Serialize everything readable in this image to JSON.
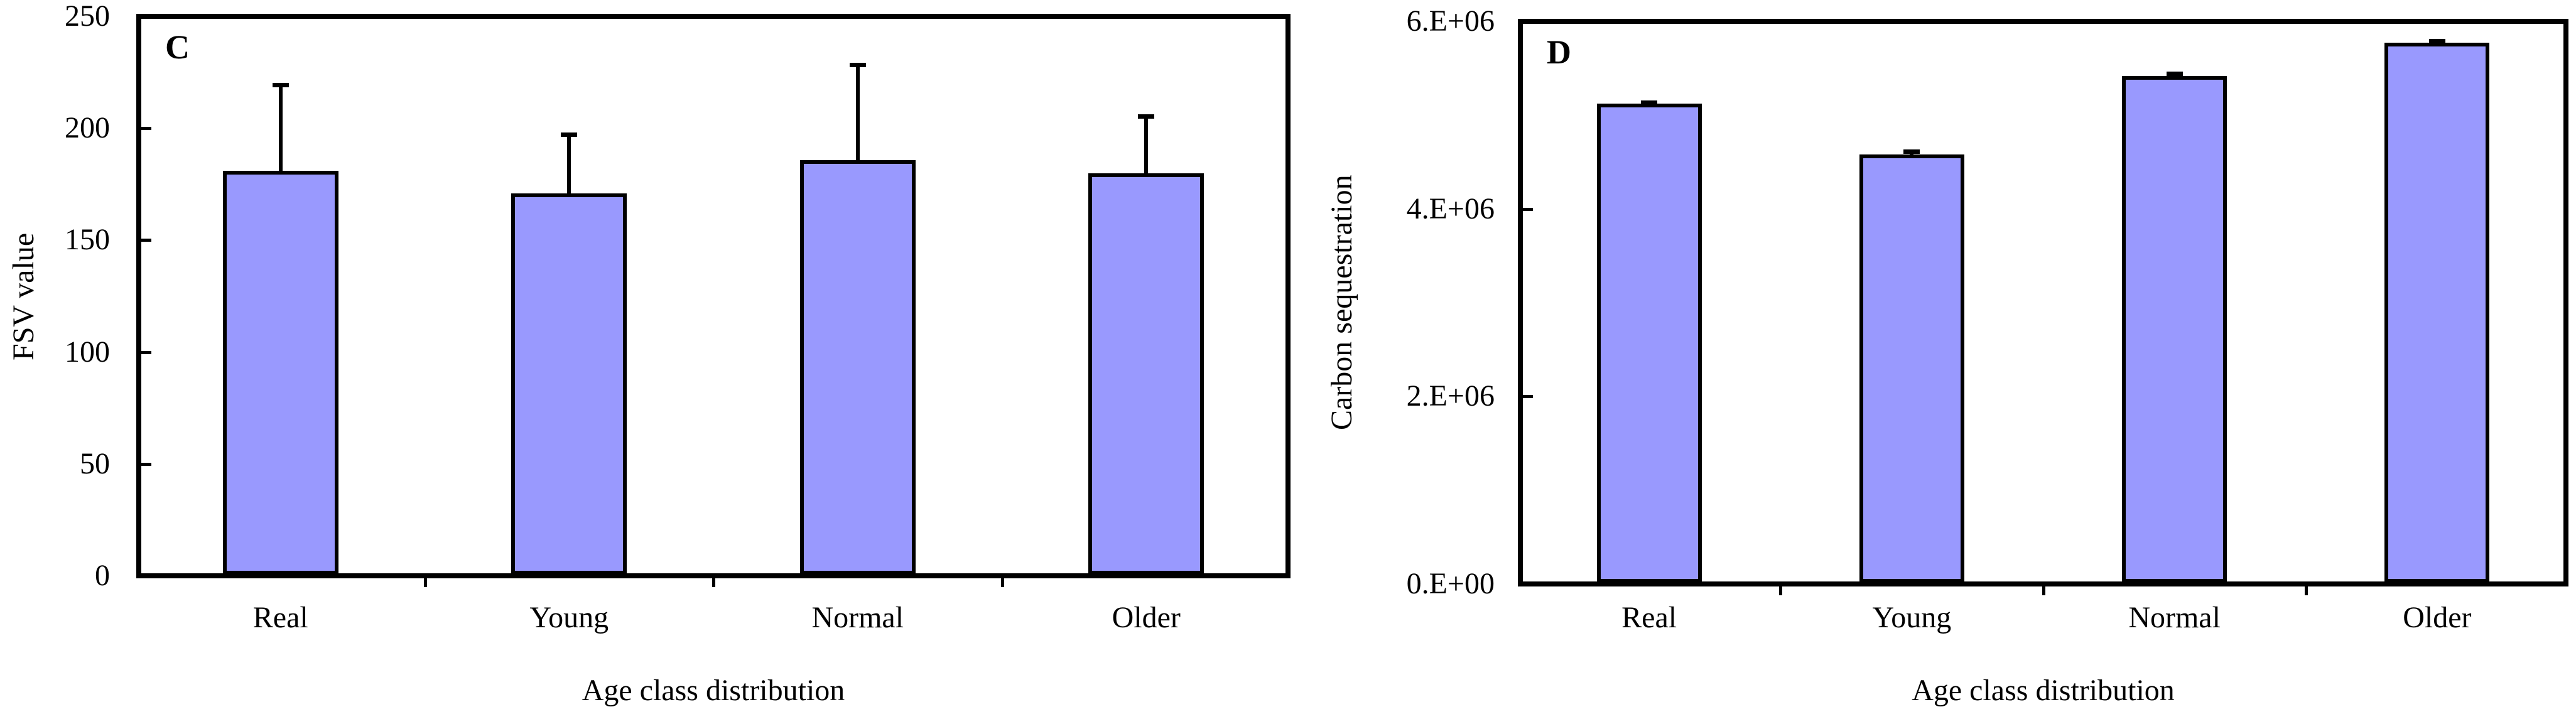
{
  "figure": {
    "background": "#ffffff",
    "bar_fill": "#9999fe",
    "line_color": "#000000"
  },
  "chart_data": [
    {
      "type": "bar",
      "panel_label": "C",
      "categories": [
        "Real",
        "Young",
        "Normal",
        "Older"
      ],
      "values": [
        180,
        170,
        185,
        179
      ],
      "error_plus": [
        39,
        27,
        43,
        26
      ],
      "title": "",
      "xlabel": "Age class distribution",
      "ylabel": "FSV value",
      "ylim": [
        0,
        250
      ],
      "yticks": [
        0,
        50,
        100,
        150,
        200,
        250
      ],
      "ytick_labels": [
        "0",
        "50",
        "100",
        "150",
        "200",
        "250"
      ],
      "grid": false,
      "legend": false,
      "bar_color": "#9999fe"
    },
    {
      "type": "bar",
      "panel_label": "D",
      "categories": [
        "Real",
        "Young",
        "Normal",
        "Older"
      ],
      "values": [
        5100000,
        4560000,
        5400000,
        5750000
      ],
      "error_plus": [
        30000,
        45000,
        38000,
        35000
      ],
      "title": "",
      "xlabel": "Age class distribution",
      "ylabel": "Carbon sequestration",
      "ylim": [
        0,
        6000000
      ],
      "yticks": [
        0,
        2000000,
        4000000,
        6000000
      ],
      "ytick_labels": [
        "0.E+00",
        "2.E+06",
        "4.E+06",
        "6.E+06"
      ],
      "grid": false,
      "legend": false,
      "bar_color": "#9999fe"
    }
  ]
}
